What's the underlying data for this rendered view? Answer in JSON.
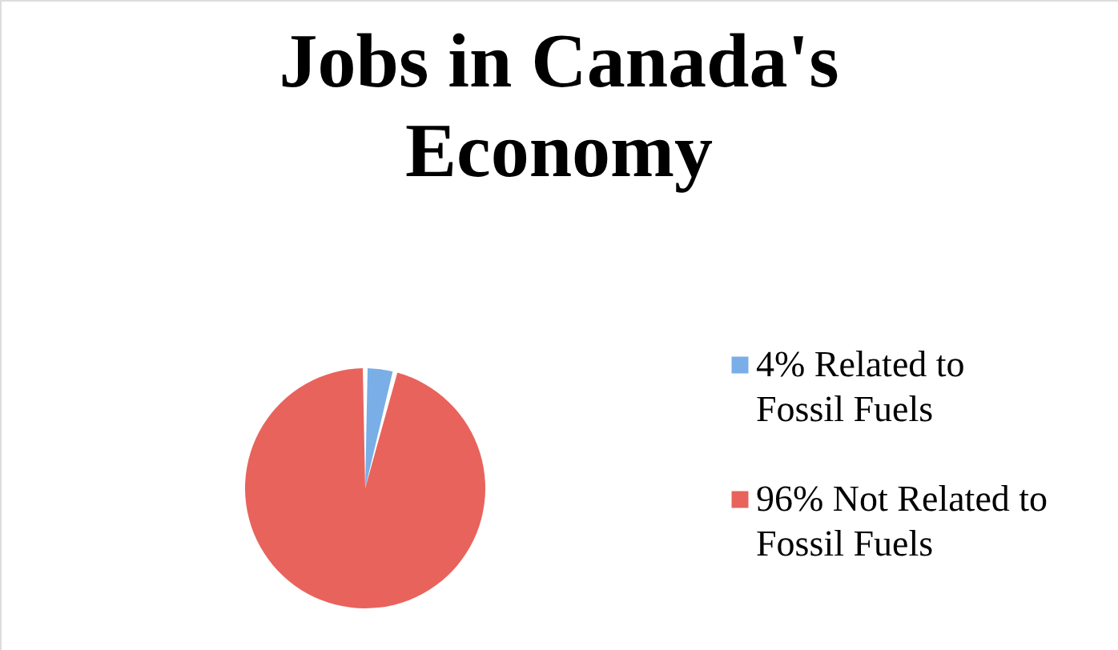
{
  "chart_data": {
    "type": "pie",
    "title": "Jobs in Canada's Economy",
    "categories": [
      "4% Related to Fossil Fuels",
      "96% Not Related to Fossil Fuels"
    ],
    "values": [
      4,
      96
    ],
    "colors": [
      "#79aee6",
      "#e8635c"
    ],
    "legend": "right"
  }
}
